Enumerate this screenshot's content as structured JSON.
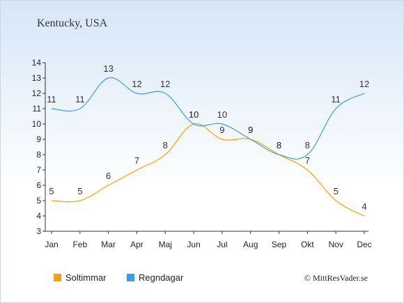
{
  "chart_data": {
    "type": "line",
    "title": "Kentucky, USA",
    "categories": [
      "Jan",
      "Feb",
      "Mar",
      "Apr",
      "Maj",
      "Jun",
      "Jul",
      "Aug",
      "Sep",
      "Okt",
      "Nov",
      "Dec"
    ],
    "series": [
      {
        "name": "Soltimmar",
        "color": "#ff9e00",
        "values": [
          5,
          5,
          6,
          7,
          8,
          10,
          9,
          9,
          8,
          7,
          5,
          4
        ]
      },
      {
        "name": "Regndagar",
        "color": "#3d9be9",
        "values": [
          11,
          11,
          13,
          12,
          12,
          10,
          10,
          9,
          8,
          8,
          11,
          12
        ]
      }
    ],
    "ylim": [
      3,
      14
    ],
    "yticks": [
      3,
      4,
      5,
      6,
      7,
      8,
      9,
      10,
      11,
      12,
      13,
      14
    ],
    "grid": false,
    "legend": "bottom-left",
    "xlabel": "",
    "ylabel": ""
  },
  "footer": {
    "copyright": "© MittResVader.se"
  }
}
